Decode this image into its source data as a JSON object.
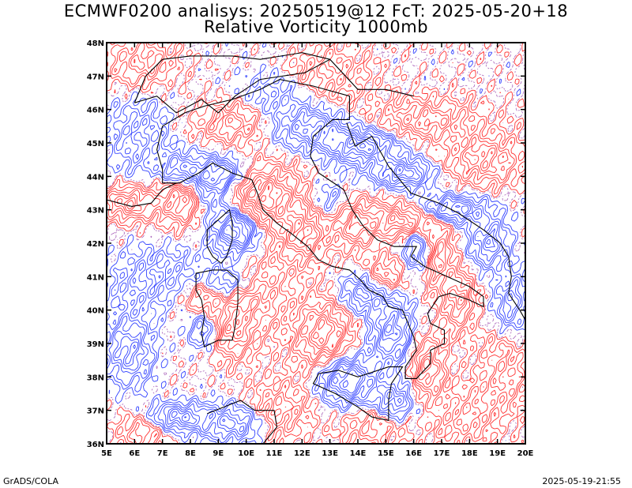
{
  "title_line1": "ECMWF0200 analisys: 20250519@12 FcT: 2025-05-20+18",
  "title_line2": "Relative Vorticity 1000mb",
  "footer_left": "GrADS/COLA",
  "footer_right": "2025-05-19-21:55",
  "map": {
    "lon_range": [
      5,
      20
    ],
    "lat_range": [
      36,
      48
    ],
    "lon_ticks": [
      "5E",
      "6E",
      "7E",
      "8E",
      "9E",
      "10E",
      "11E",
      "12E",
      "13E",
      "14E",
      "15E",
      "16E",
      "17E",
      "18E",
      "19E",
      "20E"
    ],
    "lat_ticks": [
      "36N",
      "37N",
      "38N",
      "39N",
      "40N",
      "41N",
      "42N",
      "43N",
      "44N",
      "45N",
      "46N",
      "47N",
      "48N"
    ],
    "colors": {
      "positive_vorticity": "#ff3030",
      "negative_vorticity": "#3040ff",
      "zero_contour": "#b070c0",
      "coastline": "#000000"
    }
  }
}
